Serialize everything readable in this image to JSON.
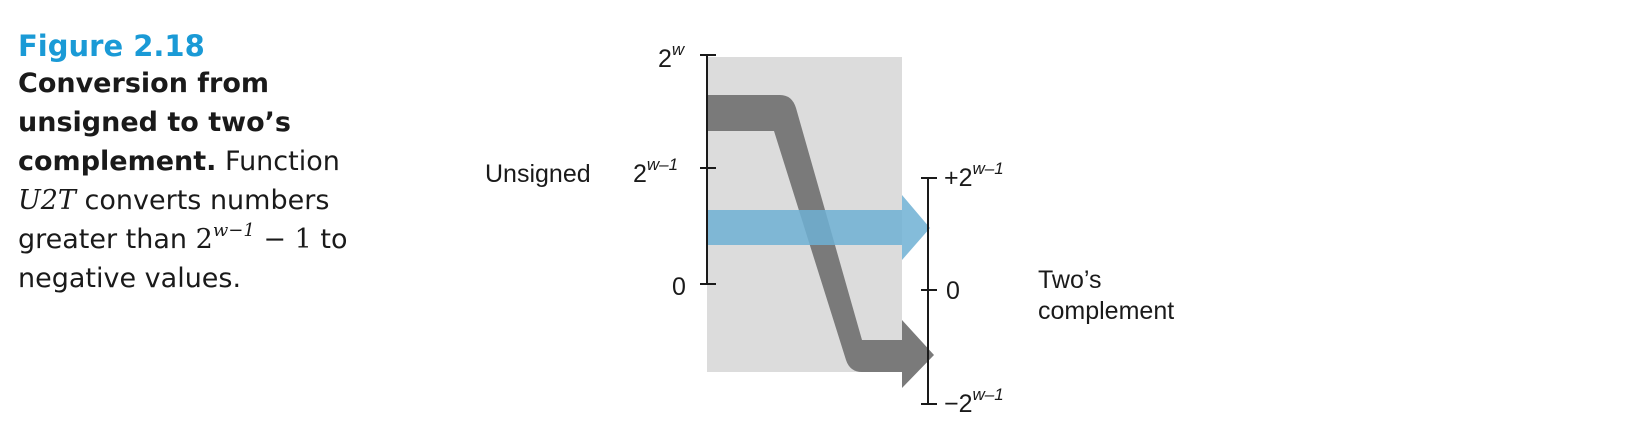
{
  "caption": {
    "figure_label": "Figure 2.18",
    "title_lines": [
      "Conversion from",
      "unsigned to two’s",
      "complement."
    ],
    "desc_word": "Function",
    "func_name": "U2T",
    "desc_mid": "converts numbers",
    "desc_greater": "greater than",
    "math_base": "2",
    "math_exp": "w−1",
    "math_tail": "− 1",
    "desc_to": "to",
    "desc_end": "negative values."
  },
  "diagram": {
    "left_axis_label": "Unsigned",
    "left_ticks": [
      {
        "base": "2",
        "exp": "w"
      },
      {
        "base": "2",
        "exp": "w–1"
      },
      {
        "base": "0",
        "exp": ""
      }
    ],
    "right_axis_label_lines": [
      "Two’s",
      "complement"
    ],
    "right_ticks": [
      {
        "base": "+2",
        "exp": "w–1"
      },
      {
        "base": "0",
        "exp": ""
      },
      {
        "base": "−2",
        "exp": "w–1"
      }
    ],
    "colors": {
      "panel": "#dcdcdc",
      "gray_band": "#7a7a7a",
      "blue_band": "#6fb0d4",
      "caption_blue": "#1a9ad6"
    }
  }
}
